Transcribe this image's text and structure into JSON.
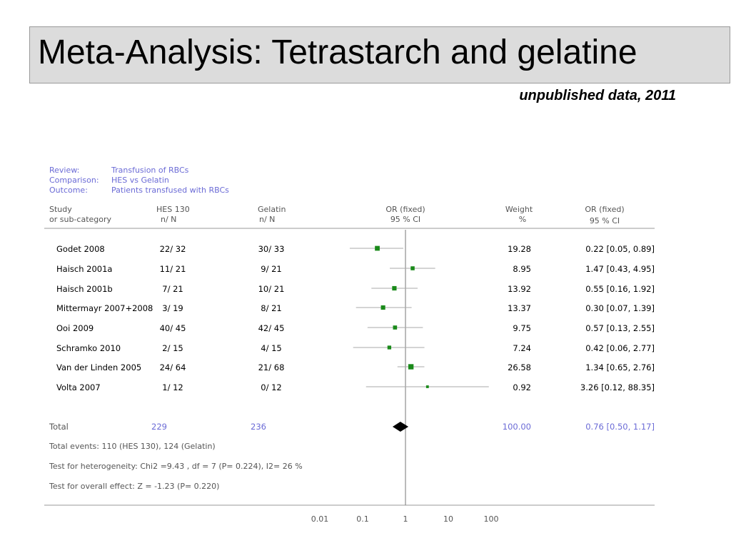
{
  "title": "Meta-Analysis: Tetrastarch and gelatine",
  "subtitle": "unpublished data, 2011",
  "review": {
    "review_label": "Review:",
    "review_value": "Transfusion of RBCs",
    "comparison_label": "Comparison:",
    "comparison_value": "HES vs Gelatin",
    "outcome_label": "Outcome:",
    "outcome_value": "Patients transfused with RBCs"
  },
  "columns": {
    "study_1": "Study",
    "study_2": "or sub-category",
    "hes_1": "HES 130",
    "hes_2": "n/ N",
    "gel_1": "Gelatin",
    "gel_2": "n/ N",
    "or_1": "OR (fixed)",
    "or_2": "95 % CI",
    "weight_1": "Weight",
    "weight_2": "%",
    "orci_1": "OR (fixed)",
    "orci_2": "95 % CI"
  },
  "chart_data": {
    "type": "forest",
    "x_scale": "log",
    "x_ticks": [
      "0.01",
      "0.1",
      "1",
      "10",
      "100"
    ],
    "x_tick_values": [
      0.01,
      0.1,
      1,
      10,
      100
    ],
    "reference_line": 1,
    "studies": [
      {
        "name": "Godet 2008",
        "hes": "22/ 32",
        "gel": "30/ 33",
        "weight": "19.28",
        "ci_text": "0.22 [0.05, 0.89]",
        "or": 0.22,
        "lo": 0.05,
        "hi": 0.89,
        "w": 19.28
      },
      {
        "name": "Haisch 2001a",
        "hes": "11/ 21",
        "gel": "9/ 21",
        "weight": "8.95",
        "ci_text": "1.47 [0.43, 4.95]",
        "or": 1.47,
        "lo": 0.43,
        "hi": 4.95,
        "w": 8.95
      },
      {
        "name": "Haisch 2001b",
        "hes": "7/ 21",
        "gel": "10/ 21",
        "weight": "13.92",
        "ci_text": "0.55 [0.16, 1.92]",
        "or": 0.55,
        "lo": 0.16,
        "hi": 1.92,
        "w": 13.92
      },
      {
        "name": "Mittermayr 2007+2008",
        "hes": "3/ 19",
        "gel": "8/ 21",
        "weight": "13.37",
        "ci_text": "0.30 [0.07, 1.39]",
        "or": 0.3,
        "lo": 0.07,
        "hi": 1.39,
        "w": 13.37
      },
      {
        "name": "Ooi 2009",
        "hes": "40/ 45",
        "gel": "42/ 45",
        "weight": "9.75",
        "ci_text": "0.57 [0.13, 2.55]",
        "or": 0.57,
        "lo": 0.13,
        "hi": 2.55,
        "w": 9.75
      },
      {
        "name": "Schramko 2010",
        "hes": "2/ 15",
        "gel": "4/ 15",
        "weight": "7.24",
        "ci_text": "0.42 [0.06, 2.77]",
        "or": 0.42,
        "lo": 0.06,
        "hi": 2.77,
        "w": 7.24
      },
      {
        "name": "Van der Linden 2005",
        "hes": "24/ 64",
        "gel": "21/ 68",
        "weight": "26.58",
        "ci_text": "1.34 [0.65, 2.76]",
        "or": 1.34,
        "lo": 0.65,
        "hi": 2.76,
        "w": 26.58
      },
      {
        "name": "Volta 2007",
        "hes": "1/ 12",
        "gel": "0/ 12",
        "weight": "0.92",
        "ci_text": "3.26 [0.12, 88.35]",
        "or": 3.26,
        "lo": 0.12,
        "hi": 88.35,
        "w": 0.92
      }
    ],
    "total": {
      "label": "Total",
      "hes": "229",
      "gel": "236",
      "weight": "100.00",
      "ci_text": "0.76 [0.50, 1.17]",
      "or": 0.76,
      "lo": 0.5,
      "hi": 1.17
    },
    "colors": {
      "marker": "#1a8a1a",
      "diamond": "#000000",
      "accent": "#6b6bd6"
    }
  },
  "footer": {
    "events": "Total events: 110 (HES 130), 124 (Gelatin)",
    "heterogeneity": "Test for heterogeneity: Chi2 =9.43  , df = 7   (P= 0.224), I2= 26 %",
    "overall": "Test for overall effect: Z = -1.23 (P= 0.220)"
  }
}
